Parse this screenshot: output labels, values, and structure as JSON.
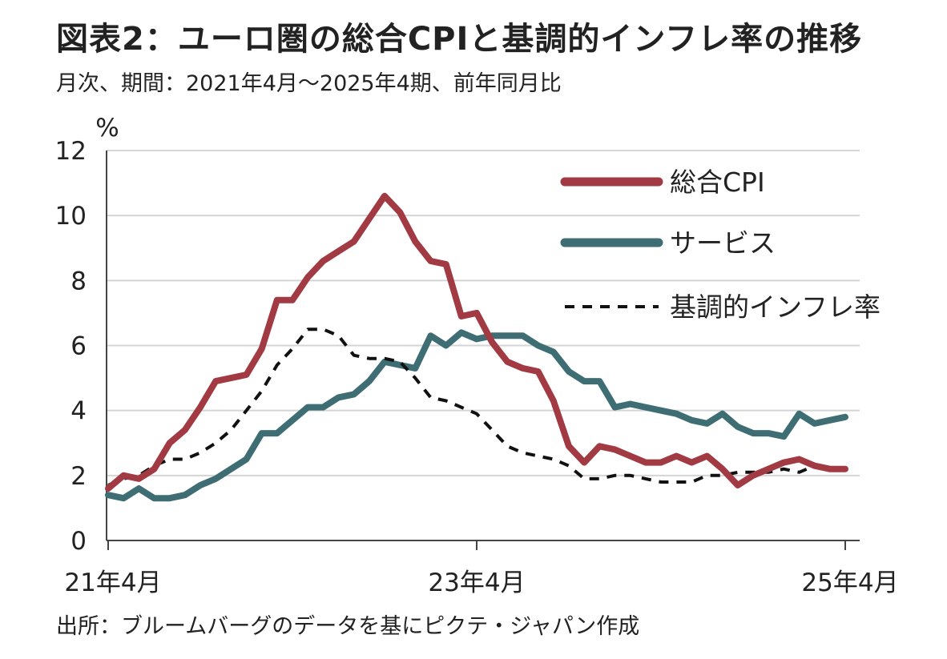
{
  "title": "図表2：ユーロ圏の総合CPIと基調的インフレ率の推移",
  "subtitle": "月次、期間：2021年4月～2025年4期、前年同月比",
  "source": "出所：ブルームバーグのデータを基にピクテ・ジャパン作成",
  "chart_data": {
    "type": "line",
    "ylabel": "%",
    "ylim": [
      0,
      12
    ],
    "yticks": [
      0,
      2,
      4,
      6,
      8,
      10,
      12
    ],
    "xtick_labels": [
      "21年4月",
      "23年4月",
      "25年4月"
    ],
    "xtick_index": [
      0,
      24,
      48
    ],
    "grid": true,
    "legend_position": "top-right",
    "colors": {
      "cpi": "#a23a44",
      "services": "#3e6e73",
      "core": "#111111"
    },
    "series": [
      {
        "name": "総合CPI",
        "key": "cpi",
        "style": "solid",
        "values": [
          1.6,
          2.0,
          1.9,
          2.2,
          3.0,
          3.4,
          4.1,
          4.9,
          5.0,
          5.1,
          5.9,
          7.4,
          7.4,
          8.1,
          8.6,
          8.9,
          9.2,
          9.9,
          10.6,
          10.1,
          9.2,
          8.6,
          8.5,
          6.9,
          7.0,
          6.1,
          5.5,
          5.3,
          5.2,
          4.3,
          2.9,
          2.4,
          2.9,
          2.8,
          2.6,
          2.4,
          2.4,
          2.6,
          2.4,
          2.6,
          2.2,
          1.7,
          2.0,
          2.2,
          2.4,
          2.5,
          2.3,
          2.2,
          2.2
        ]
      },
      {
        "name": "サービス",
        "key": "services",
        "style": "solid",
        "values": [
          1.4,
          1.3,
          1.6,
          1.3,
          1.3,
          1.4,
          1.7,
          1.9,
          2.2,
          2.5,
          3.3,
          3.3,
          3.7,
          4.1,
          4.1,
          4.4,
          4.5,
          4.9,
          5.5,
          5.4,
          5.3,
          6.3,
          6.0,
          6.4,
          6.2,
          6.3,
          6.3,
          6.3,
          6.0,
          5.8,
          5.2,
          4.9,
          4.9,
          4.1,
          4.2,
          4.1,
          4.0,
          3.9,
          3.7,
          3.6,
          3.9,
          3.5,
          3.3,
          3.3,
          3.2,
          3.9,
          3.6,
          3.7,
          3.8
        ]
      },
      {
        "name": "基調的インフレ率",
        "key": "core",
        "style": "dashed",
        "values": [
          1.7,
          1.9,
          2.0,
          2.3,
          2.5,
          2.5,
          2.7,
          3.0,
          3.4,
          4.0,
          4.6,
          5.4,
          5.9,
          6.5,
          6.5,
          6.3,
          5.7,
          5.6,
          5.6,
          5.5,
          5.0,
          4.4,
          4.3,
          4.1,
          3.9,
          3.4,
          2.9,
          2.7,
          2.6,
          2.5,
          2.3,
          1.9,
          1.9,
          2.0,
          2.0,
          1.9,
          1.8,
          1.8,
          1.8,
          2.0,
          2.0,
          2.1,
          2.1,
          2.1,
          2.2,
          2.1,
          2.3,
          2.2,
          2.2
        ]
      }
    ]
  }
}
